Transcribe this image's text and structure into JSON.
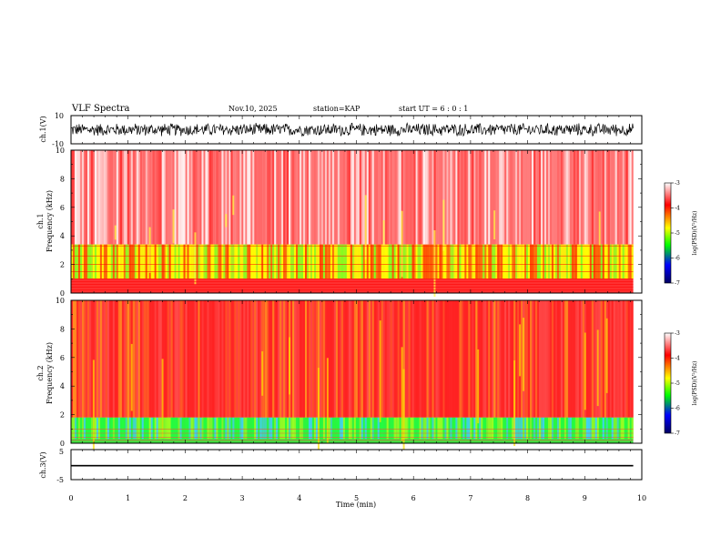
{
  "header": {
    "title": "VLF Spectra",
    "date": "Nov.10, 2025",
    "station": "station=KAP",
    "start": "start  UT  =   6  : 0   : 1"
  },
  "chart_data": [
    {
      "type": "line",
      "name": "ch1-waveform",
      "title": "",
      "ylabel": "ch.1(V)",
      "ylim": [
        -10,
        10
      ],
      "ytick_labels": [
        "-10",
        "10"
      ],
      "x_range_min": [
        0,
        9.85
      ],
      "description_value_range": [
        -5,
        5
      ],
      "color": "#000000"
    },
    {
      "type": "heatmap",
      "name": "ch1-spectrogram",
      "ylabel": "ch.1\nFrequency  (kHz)",
      "ylabel_lines": [
        "ch.1",
        "Frequency  (kHz)"
      ],
      "ylim": [
        0,
        10
      ],
      "ytick_labels": [
        "0",
        "2",
        "4",
        "6",
        "8",
        "10"
      ],
      "x_range_min": [
        0,
        9.85
      ],
      "bands": [
        {
          "from_khz": 0,
          "to_khz": 1.0,
          "level": "red"
        },
        {
          "from_khz": 1.0,
          "to_khz": 3.4,
          "level": "yellow-green"
        },
        {
          "from_khz": 3.4,
          "to_khz": 10,
          "level": "light red"
        }
      ],
      "colorbar": {
        "label": "log(PSD)(V²/Hz)",
        "ticks": [
          "-3",
          "-4",
          "-5",
          "-6",
          "-7"
        ],
        "range": [
          -7,
          -3
        ],
        "colors": [
          "#ffffff",
          "#ff0000",
          "#ffff00",
          "#00ff00",
          "#0000ff",
          "#000080"
        ]
      }
    },
    {
      "type": "heatmap",
      "name": "ch2-spectrogram",
      "ylabel": "ch.2\nFrequency  (kHz)",
      "ylabel_lines": [
        "ch.2",
        "Frequency  (kHz)"
      ],
      "ylim": [
        0,
        10
      ],
      "ytick_labels": [
        "0",
        "2",
        "4",
        "6",
        "8",
        "10"
      ],
      "x_range_min": [
        0,
        9.85
      ],
      "bands": [
        {
          "from_khz": 0,
          "to_khz": 1.8,
          "level": "green"
        },
        {
          "from_khz": 1.8,
          "to_khz": 10,
          "level": "red"
        }
      ],
      "colorbar": {
        "label": "log(PSD)(V²/Hz)",
        "ticks": [
          "-3",
          "-4",
          "-5",
          "-6",
          "-7"
        ],
        "range": [
          -7,
          -3
        ],
        "colors": [
          "#ffffff",
          "#ff0000",
          "#ffff00",
          "#00ff00",
          "#0000ff",
          "#000080"
        ]
      }
    },
    {
      "type": "line",
      "name": "ch3-waveform",
      "ylabel": "ch.3(V)",
      "ylim": [
        -5,
        5
      ],
      "ytick_labels": [
        "-5",
        "5"
      ],
      "x_range_min": [
        0,
        9.85
      ],
      "value_band": [
        -0.6,
        -0.1
      ],
      "color": "#000000"
    }
  ],
  "xaxis": {
    "label": "Time  (min)",
    "range": [
      0,
      10
    ],
    "ticks": [
      "0",
      "1",
      "2",
      "3",
      "4",
      "5",
      "6",
      "7",
      "8",
      "9",
      "10"
    ]
  }
}
